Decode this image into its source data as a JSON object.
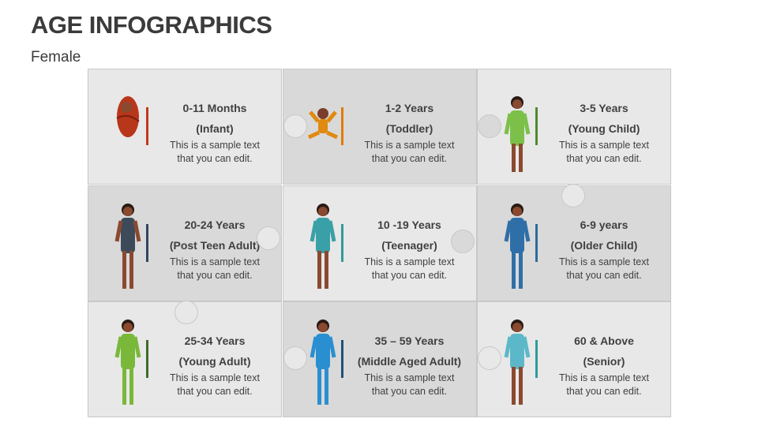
{
  "title": "AGE INFOGRAPHICS",
  "subtitle": "Female",
  "tiles": [
    {
      "age": "0-11 Months",
      "stage": "(Infant)",
      "text1": "This is a sample text",
      "text2": "that you can edit.",
      "accent": "#c0391b",
      "figure": "infant-icon"
    },
    {
      "age": "1-2 Years",
      "stage": "(Toddler)",
      "text1": "This is a sample text",
      "text2": "that you can edit.",
      "accent": "#e07b00",
      "figure": "toddler-icon"
    },
    {
      "age": "3-5 Years",
      "stage": "(Young Child)",
      "text1": "This is a sample text",
      "text2": "that you can edit.",
      "accent": "#4e8a2e",
      "figure": "young-child-icon"
    },
    {
      "age": "20-24 Years",
      "stage": "(Post Teen Adult)",
      "text1": "This is a sample text",
      "text2": "that you can edit.",
      "accent": "#2f4560",
      "figure": "post-teen-adult-icon"
    },
    {
      "age": "10 -19 Years",
      "stage": "(Teenager)",
      "text1": "This is a sample text",
      "text2": "that you can edit.",
      "accent": "#2f9a9a",
      "figure": "teenager-icon"
    },
    {
      "age": "6-9 years",
      "stage": "(Older Child)",
      "text1": "This is a sample text",
      "text2": "that you can edit.",
      "accent": "#2d6a9a",
      "figure": "older-child-icon"
    },
    {
      "age": "25-34 Years",
      "stage": "(Young Adult)",
      "text1": "This is a sample text",
      "text2": "that you can edit.",
      "accent": "#3f6b2a",
      "figure": "young-adult-icon"
    },
    {
      "age": "35 – 59 Years",
      "stage": "(Middle Aged Adult)",
      "text1": "This is a sample text",
      "text2": "that you can edit.",
      "accent": "#1f4f7a",
      "figure": "middle-aged-adult-icon"
    },
    {
      "age": "60 & Above",
      "stage": "(Senior)",
      "text1": "This is a sample text",
      "text2": "that you can edit.",
      "accent": "#2f9a9a",
      "figure": "senior-icon"
    }
  ]
}
